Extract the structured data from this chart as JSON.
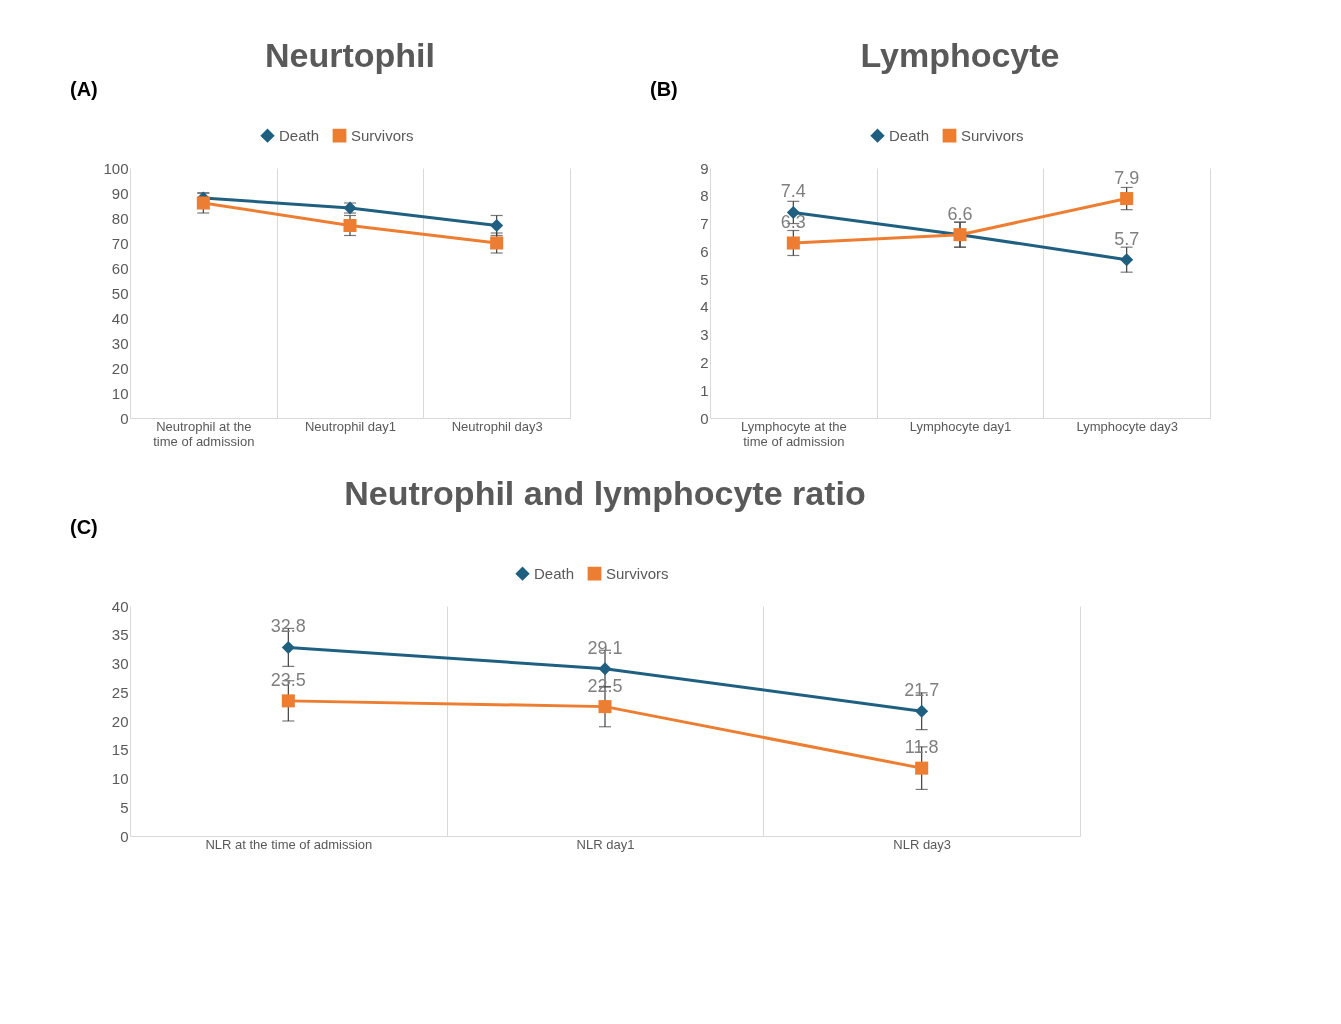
{
  "chart_data": [
    {
      "type": "line",
      "title": "Neurtophil",
      "annotations": [
        "(A)"
      ],
      "categories": [
        "Neutrophil at the time of admission",
        "Neutrophil day1",
        "Neutrophil day3"
      ],
      "ylim": [
        0,
        100
      ],
      "yticks": [
        0,
        10,
        20,
        30,
        40,
        50,
        60,
        70,
        80,
        90,
        100
      ],
      "grid": "x",
      "legend": "top",
      "line_style": "solid",
      "series": [
        {
          "name": "Death",
          "color": "#1f5f80",
          "marker": "diamond",
          "values": [
            88,
            84,
            77
          ],
          "errors": [
            2,
            2,
            4
          ]
        },
        {
          "name": "Survivors",
          "color": "#ed7d31",
          "marker": "square",
          "values": [
            86,
            77,
            70
          ],
          "errors": [
            4,
            4,
            4
          ]
        }
      ]
    },
    {
      "type": "line",
      "title": "Lymphocyte",
      "annotations": [
        "(B)"
      ],
      "categories": [
        "Lymphocyte at the time of admission",
        "Lymphocyte day1",
        "Lymphocyte day3"
      ],
      "ylim": [
        0,
        9
      ],
      "yticks": [
        0,
        1,
        2,
        3,
        4,
        5,
        6,
        7,
        8,
        9
      ],
      "grid": "x",
      "legend": "top",
      "line_style": "solid",
      "series": [
        {
          "name": "Death",
          "color": "#1f5f80",
          "marker": "diamond",
          "values": [
            7.4,
            6.6,
            5.7
          ],
          "errors": [
            0.4,
            0.45,
            0.45
          ],
          "value_labels": [
            "7.4",
            "6.6",
            "5.7"
          ]
        },
        {
          "name": "Survivors",
          "color": "#ed7d31",
          "marker": "square",
          "values": [
            6.3,
            6.6,
            7.9
          ],
          "errors": [
            0.45,
            0.45,
            0.4
          ],
          "value_labels": [
            "6.3",
            null,
            "7.9"
          ]
        }
      ]
    },
    {
      "type": "line",
      "title": "Neutrophil and lymphocyte ratio",
      "annotations": [
        "(C)"
      ],
      "categories": [
        "NLR at the time of admission",
        "NLR day1",
        "NLR day3"
      ],
      "ylim": [
        0,
        40
      ],
      "yticks": [
        0,
        5,
        10,
        15,
        20,
        25,
        30,
        35,
        40
      ],
      "grid": "x",
      "legend": "top",
      "line_style": "solid",
      "data_labels": true,
      "series": [
        {
          "name": "Death",
          "color": "#1f5f80",
          "marker": "diamond",
          "values": [
            32.8,
            29.1,
            21.7
          ],
          "errors": [
            3.3,
            3.2,
            3.2
          ]
        },
        {
          "name": "Survivors",
          "color": "#ed7d31",
          "marker": "square",
          "values": [
            23.5,
            22.5,
            11.8
          ],
          "errors": [
            3.5,
            3.5,
            3.7
          ]
        }
      ]
    }
  ]
}
